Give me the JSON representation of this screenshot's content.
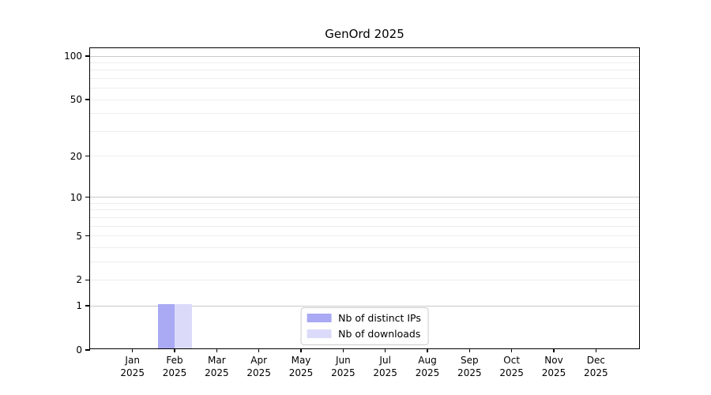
{
  "chart_data": {
    "type": "bar",
    "title": "GenOrd 2025",
    "x_categories": [
      {
        "month": "Jan",
        "year": "2025"
      },
      {
        "month": "Feb",
        "year": "2025"
      },
      {
        "month": "Mar",
        "year": "2025"
      },
      {
        "month": "Apr",
        "year": "2025"
      },
      {
        "month": "May",
        "year": "2025"
      },
      {
        "month": "Jun",
        "year": "2025"
      },
      {
        "month": "Jul",
        "year": "2025"
      },
      {
        "month": "Aug",
        "year": "2025"
      },
      {
        "month": "Sep",
        "year": "2025"
      },
      {
        "month": "Oct",
        "year": "2025"
      },
      {
        "month": "Nov",
        "year": "2025"
      },
      {
        "month": "Dec",
        "year": "2025"
      }
    ],
    "series": [
      {
        "name": "Nb of distinct IPs",
        "color": "#a9a9f4",
        "values": [
          0,
          1,
          0,
          0,
          0,
          0,
          0,
          0,
          0,
          0,
          0,
          0
        ]
      },
      {
        "name": "Nb of downloads",
        "color": "#dbdbf9",
        "values": [
          0,
          1,
          0,
          0,
          0,
          0,
          0,
          0,
          0,
          0,
          0,
          0
        ]
      }
    ],
    "y_axis": {
      "scale": "log1p",
      "lim": [
        0,
        100
      ],
      "tick_values": [
        0,
        1,
        2,
        5,
        10,
        20,
        50,
        100
      ],
      "major_grid_values": [
        1,
        10,
        100
      ],
      "minor_grid_values": [
        2,
        3,
        4,
        5,
        6,
        7,
        8,
        9,
        20,
        30,
        40,
        50,
        60,
        70,
        80,
        90
      ]
    },
    "grid": {
      "major_color": "#c9c9c9",
      "minor_color": "#ededed"
    },
    "legend": {
      "position": "lower center"
    }
  }
}
